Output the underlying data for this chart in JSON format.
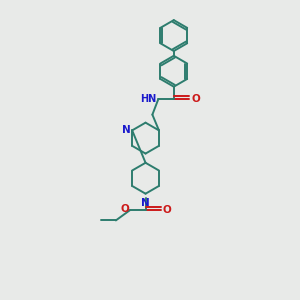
{
  "bg_color": "#e8eae8",
  "bond_color": "#2d7d6e",
  "n_color": "#1a1acc",
  "o_color": "#cc1a1a",
  "lw": 1.4,
  "fig_size": [
    3.0,
    3.0
  ],
  "dpi": 100,
  "xlim": [
    0,
    10
  ],
  "ylim": [
    0,
    10
  ]
}
